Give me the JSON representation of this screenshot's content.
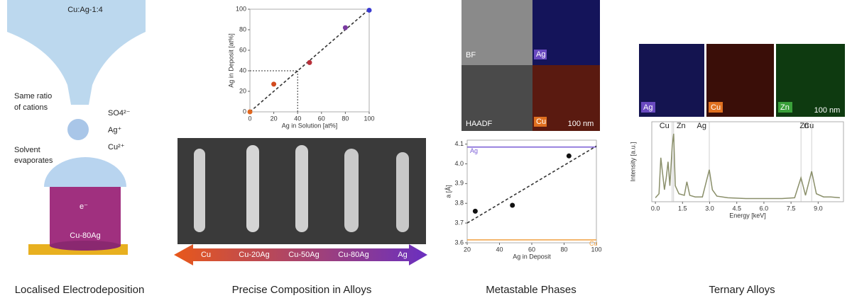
{
  "panels": [
    {
      "caption": "Localised Electrodeposition",
      "nozzle_label": "Cu:Ag-1:4",
      "ratio_label": [
        "Same ratio",
        "of cations"
      ],
      "legend": [
        "SO4²⁻",
        "Ag⁺",
        "Cu²⁺"
      ],
      "solvent_label": [
        "Solvent",
        "evaporates"
      ],
      "electron_label": "e⁻",
      "pillar_label": "Cu-80Ag"
    },
    {
      "caption": "Precise Composition in Alloys",
      "arrow_labels": [
        "Cu",
        "Cu-20Ag",
        "Cu-50Ag",
        "Cu-80Ag",
        "Ag"
      ]
    },
    {
      "caption": "Metastable Phases",
      "image_labels": [
        "BF",
        "Ag",
        "HAADF",
        "Cu"
      ],
      "scale_label": "100 nm"
    },
    {
      "caption": "Ternary Alloys",
      "map_labels": [
        "Ag",
        "Cu",
        "Zn"
      ],
      "scale_label": "100 nm"
    }
  ],
  "chart_data": [
    {
      "type": "scatter",
      "x_label": "Ag in Solution [at%]",
      "y_label": "Ag in Deposit [at%]",
      "x": [
        0,
        20,
        50,
        80,
        100
      ],
      "values": [
        0,
        27,
        48,
        82,
        99
      ],
      "colors": [
        "#e0661e",
        "#d24a1e",
        "#b8303a",
        "#7a3aa0",
        "#3a3ad0"
      ],
      "fit": {
        "x": [
          0,
          100
        ],
        "values": [
          0,
          100
        ]
      },
      "guide": 40,
      "xlim": [
        0,
        100
      ],
      "ylim": [
        0,
        100
      ],
      "xticks": [
        0,
        20,
        40,
        60,
        80,
        100
      ],
      "yticks": [
        0,
        20,
        40,
        60,
        80,
        100
      ]
    },
    {
      "type": "scatter",
      "x_label": "Ag in Deposit",
      "y_label": "a [Å]",
      "x": [
        25,
        48,
        83
      ],
      "values": [
        3.76,
        3.79,
        4.04
      ],
      "colors": [
        "#111",
        "#111",
        "#111"
      ],
      "fit": {
        "x": [
          20,
          100
        ],
        "values": [
          3.7,
          4.09
        ]
      },
      "reference_lines": [
        {
          "name": "Ag",
          "value": 4.085,
          "color": "#7a5cd6"
        },
        {
          "name": "Cu",
          "value": 3.615,
          "color": "#f0a040"
        }
      ],
      "xlim": [
        20,
        100
      ],
      "ylim": [
        3.6,
        4.12
      ],
      "xticks": [
        20,
        40,
        60,
        80,
        100
      ],
      "yticks": [
        3.6,
        3.7,
        3.8,
        3.9,
        {
          "value": 4,
          "label": "4.0"
        },
        4.1
      ]
    },
    {
      "type": "line",
      "x_label": "Energy [keV]",
      "y_label": "Intensity [a.u.]",
      "color": "#8a8f6a",
      "x": [
        0,
        0.2,
        0.3,
        0.5,
        0.6,
        0.7,
        0.8,
        0.93,
        1.01,
        1.1,
        1.3,
        1.6,
        1.74,
        1.9,
        2.2,
        2.6,
        2.98,
        3.15,
        3.4,
        4,
        5,
        6,
        7,
        7.7,
        8.05,
        8.3,
        8.64,
        8.9,
        9.3,
        9.7,
        10.2
      ],
      "values": [
        0.05,
        0.1,
        0.55,
        0.15,
        0.3,
        0.5,
        0.2,
        0.7,
        0.85,
        0.2,
        0.1,
        0.08,
        0.25,
        0.08,
        0.06,
        0.06,
        0.4,
        0.15,
        0.07,
        0.05,
        0.04,
        0.04,
        0.04,
        0.05,
        0.3,
        0.08,
        0.38,
        0.1,
        0.06,
        0.06,
        0.05
      ],
      "annotations": [
        {
          "text": "Cu",
          "x": 0.93
        },
        {
          "text": "Zn",
          "x": 1.01
        },
        {
          "text": "Ag",
          "x": 2.98
        },
        {
          "text": "Cu",
          "x": 8.05
        },
        {
          "text": "Zn",
          "x": 8.64
        }
      ],
      "xlim": [
        -0.2,
        10.4
      ],
      "ylim": [
        0,
        1
      ],
      "xticks": [
        {
          "value": 0,
          "label": "0.0"
        },
        1.5,
        {
          "value": 3,
          "label": "3.0"
        },
        4.5,
        {
          "value": 6,
          "label": "6.0"
        },
        7.5,
        {
          "value": 9,
          "label": "9.0"
        }
      ]
    }
  ]
}
